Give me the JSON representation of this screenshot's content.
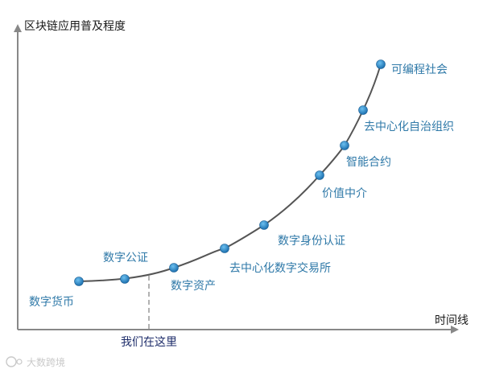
{
  "diagram": {
    "y_axis_title": "区块链应用普及程度",
    "x_axis_title": "时间线",
    "marker_label": "我们在这里",
    "watermark": "大数跨境",
    "colors": {
      "curve": "#555555",
      "axis": "#888888",
      "dot": "#2f8bc9",
      "stage_text": "#2f79a8",
      "marker_text": "#1f2e6b"
    },
    "stages": [
      "数字货币",
      "数字公证",
      "数字资产",
      "去中心化数字交易所",
      "数字身份认证",
      "价值中介",
      "智能合约",
      "去中心化自治组织",
      "可编程社会"
    ]
  }
}
